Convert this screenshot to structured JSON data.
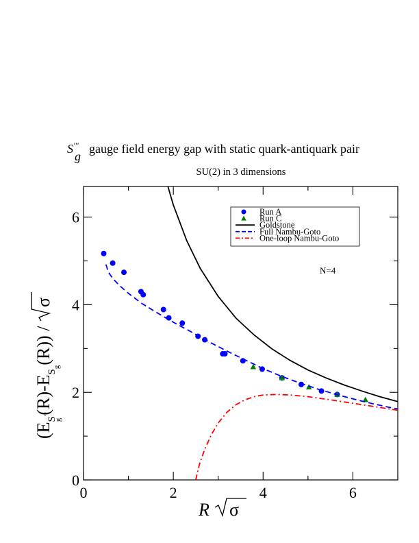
{
  "chart_data": {
    "type": "scatter",
    "title_symbol": "S",
    "title_symbol_sup": "'''",
    "title_symbol_sub": "g",
    "title_text": " gauge field energy gap with static quark-antiquark pair",
    "subtitle": "SU(2) in 3 dimensions",
    "annotation": "N=4",
    "xlabel": "R",
    "xlabel_sqrt": "σ",
    "ylabel_open": "(E",
    "ylabel_sub1": "S",
    "ylabel_sub1_sup": "'''",
    "ylabel_sub1_sub": "g",
    "ylabel_mid": "(R)-E",
    "ylabel_sub2": "S",
    "ylabel_sub2_sub": "g",
    "ylabel_close": "(R)) / ",
    "ylabel_sqrt": "σ",
    "xlim": [
      0,
      7
    ],
    "ylim": [
      0,
      6.7
    ],
    "xticks": [
      0,
      2,
      4,
      6
    ],
    "yticks": [
      0,
      2,
      4,
      6
    ],
    "grid": false,
    "legend_position": "top-right",
    "series": [
      {
        "name": "Run A",
        "kind": "points",
        "marker": "circle",
        "color": "#0000ff",
        "x": [
          0.45,
          0.65,
          0.9,
          1.28,
          1.33,
          1.78,
          1.9,
          2.2,
          2.55,
          2.7,
          3.1,
          3.15,
          3.55,
          3.98,
          4.42,
          4.85,
          5.3,
          5.65
        ],
        "y": [
          5.17,
          4.95,
          4.74,
          4.3,
          4.23,
          3.89,
          3.7,
          3.58,
          3.28,
          3.2,
          2.88,
          2.88,
          2.72,
          2.53,
          2.33,
          2.18,
          2.03,
          1.95
        ]
      },
      {
        "name": "Run C",
        "kind": "points",
        "marker": "triangle",
        "color": "#008000",
        "x": [
          3.78,
          4.42,
          5.02,
          5.65,
          6.28
        ],
        "y": [
          2.58,
          2.33,
          2.12,
          1.95,
          1.83
        ]
      },
      {
        "name": "Goldstone",
        "kind": "line",
        "dash": "solid",
        "color": "#000000",
        "x": [
          1.88,
          2.0,
          2.3,
          2.6,
          3.0,
          3.4,
          3.8,
          4.2,
          4.6,
          5.0,
          5.4,
          5.8,
          6.2,
          6.6,
          7.0
        ],
        "y": [
          6.7,
          6.28,
          5.46,
          4.83,
          4.19,
          3.69,
          3.31,
          2.99,
          2.73,
          2.51,
          2.33,
          2.17,
          2.03,
          1.9,
          1.79
        ]
      },
      {
        "name": "Full Nambu-Goto",
        "kind": "line",
        "dash": "dashed",
        "color": "#0000ff",
        "x": [
          0.5,
          0.55,
          0.65,
          0.8,
          1.0,
          1.3,
          1.6,
          2.0,
          2.4,
          2.8,
          3.2,
          3.6,
          4.0,
          4.4,
          4.8,
          5.2,
          5.6,
          6.0,
          6.4,
          6.8,
          7.0
        ],
        "y": [
          4.92,
          4.75,
          4.6,
          4.44,
          4.26,
          4.03,
          3.84,
          3.6,
          3.38,
          3.15,
          2.94,
          2.74,
          2.54,
          2.37,
          2.22,
          2.08,
          1.96,
          1.85,
          1.75,
          1.66,
          1.62
        ]
      },
      {
        "name": "One-loop Nambu-Goto",
        "kind": "line",
        "dash": "dashdot",
        "color": "#ff0000",
        "x": [
          2.5,
          2.58,
          2.7,
          2.85,
          3.0,
          3.2,
          3.4,
          3.6,
          3.8,
          4.0,
          4.3,
          4.6,
          5.0,
          5.5,
          6.0,
          6.5,
          7.0
        ],
        "y": [
          0.0,
          0.35,
          0.7,
          1.04,
          1.3,
          1.55,
          1.72,
          1.83,
          1.9,
          1.94,
          1.95,
          1.94,
          1.9,
          1.83,
          1.75,
          1.67,
          1.59
        ]
      }
    ]
  }
}
